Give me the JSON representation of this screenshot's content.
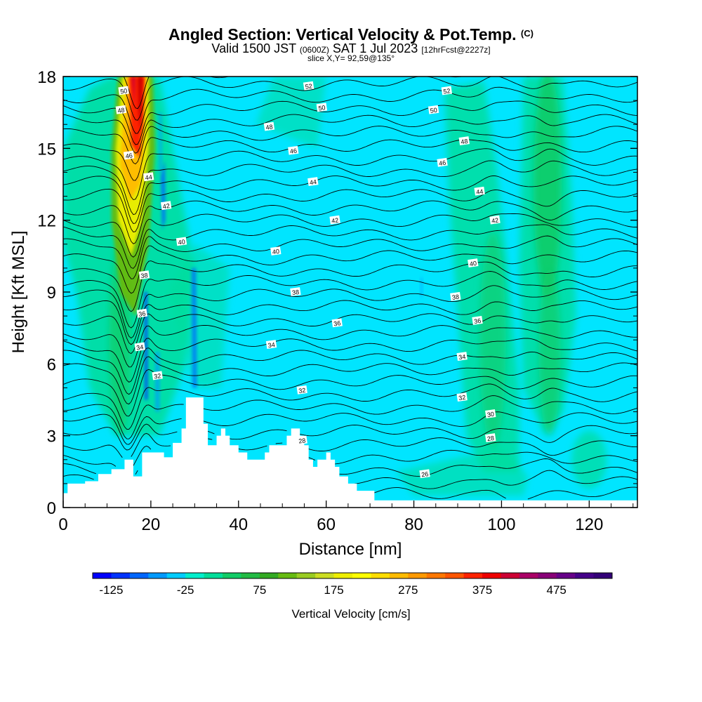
{
  "title": {
    "main": "Angled Section: Vertical Velocity & Pot.Temp.",
    "main_suffix": "(C)",
    "line2_a": "Valid 1500 JST",
    "line2_b": "(0600Z)",
    "line2_c": "SAT 1 Jul 2023",
    "line2_d": "[12hrFcst@2227z]",
    "line3": "slice X,Y= 92,59@135°"
  },
  "chart_data": {
    "type": "heatmap",
    "xlabel": "Distance [nm]",
    "ylabel": "Height [Kft MSL]",
    "xlim": [
      0,
      131
    ],
    "ylim": [
      0,
      18
    ],
    "xticks": [
      0,
      20,
      40,
      60,
      80,
      100,
      120
    ],
    "yticks": [
      0,
      3,
      6,
      9,
      12,
      15,
      18
    ],
    "colorbar": {
      "label": "Vertical Velocity [cm/s]",
      "tick_labels": [
        "-125",
        "-25",
        "75",
        "175",
        "275",
        "375",
        "475"
      ],
      "range": [
        -150,
        550
      ],
      "step": 25,
      "colors": [
        "#0000ff",
        "#0033ff",
        "#0066ff",
        "#0099ff",
        "#00ccff",
        "#00eecc",
        "#00dd99",
        "#11cc66",
        "#22bb44",
        "#33aa22",
        "#66bb11",
        "#99cc22",
        "#ccdd22",
        "#eeee00",
        "#ffff00",
        "#ffdd00",
        "#ffbb00",
        "#ff9900",
        "#ff7700",
        "#ff5500",
        "#ff2200",
        "#ee0000",
        "#cc0033",
        "#aa0066",
        "#880077",
        "#660088",
        "#440088",
        "#330077"
      ]
    },
    "colors": {
      "background": "#00e5ff",
      "weak_up": "#00dd99",
      "moderate_up": "#11cc66"
    },
    "terrain_profile": [
      [
        0,
        0.6
      ],
      [
        1,
        1.0
      ],
      [
        5,
        1.1
      ],
      [
        6,
        1.1
      ],
      [
        7,
        1.1
      ],
      [
        8,
        1.4
      ],
      [
        11,
        1.6
      ],
      [
        12,
        1.6
      ],
      [
        13,
        1.6
      ],
      [
        14,
        2.0
      ],
      [
        15,
        2.0
      ],
      [
        16,
        1.3
      ],
      [
        17,
        1.3
      ],
      [
        18,
        2.3
      ],
      [
        20,
        2.3
      ],
      [
        22,
        2.3
      ],
      [
        23,
        2.1
      ],
      [
        24,
        2.1
      ],
      [
        25,
        2.7
      ],
      [
        27,
        3.3
      ],
      [
        28,
        4.6
      ],
      [
        31,
        4.6
      ],
      [
        32,
        3.5
      ],
      [
        33,
        2.6
      ],
      [
        34,
        2.6
      ],
      [
        35,
        3.0
      ],
      [
        36,
        3.3
      ],
      [
        37,
        3.0
      ],
      [
        38,
        2.6
      ],
      [
        39,
        2.6
      ],
      [
        40,
        2.3
      ],
      [
        42,
        2.0
      ],
      [
        45,
        2.0
      ],
      [
        46,
        2.3
      ],
      [
        47,
        2.6
      ],
      [
        50,
        2.6
      ],
      [
        51,
        3.0
      ],
      [
        52,
        3.3
      ],
      [
        53,
        3.3
      ],
      [
        54,
        3.0
      ],
      [
        55,
        2.6
      ],
      [
        56,
        2.0
      ],
      [
        57,
        1.7
      ],
      [
        58,
        2.0
      ],
      [
        59,
        2.0
      ],
      [
        60,
        2.3
      ],
      [
        61,
        2.0
      ],
      [
        62,
        1.7
      ],
      [
        63,
        1.3
      ],
      [
        64,
        1.3
      ],
      [
        65,
        1.0
      ],
      [
        66,
        1.0
      ],
      [
        67,
        0.7
      ],
      [
        70,
        0.7
      ],
      [
        71,
        0.3
      ],
      [
        131,
        0.3
      ]
    ],
    "theta_labels": [
      {
        "t": "52",
        "x": 56.0,
        "y": 17.6
      },
      {
        "t": "52",
        "x": 87.5,
        "y": 17.4
      },
      {
        "t": "50",
        "x": 13.8,
        "y": 17.4
      },
      {
        "t": "50",
        "x": 59.0,
        "y": 16.7
      },
      {
        "t": "50",
        "x": 84.5,
        "y": 16.6
      },
      {
        "t": "48",
        "x": 13.2,
        "y": 16.6
      },
      {
        "t": "48",
        "x": 47.0,
        "y": 15.9
      },
      {
        "t": "48",
        "x": 91.5,
        "y": 15.3
      },
      {
        "t": "46",
        "x": 15.0,
        "y": 14.7
      },
      {
        "t": "46",
        "x": 52.5,
        "y": 14.9
      },
      {
        "t": "46",
        "x": 86.5,
        "y": 14.4
      },
      {
        "t": "44",
        "x": 19.5,
        "y": 13.8
      },
      {
        "t": "44",
        "x": 57.0,
        "y": 13.6
      },
      {
        "t": "44",
        "x": 95.0,
        "y": 13.2
      },
      {
        "t": "42",
        "x": 23.5,
        "y": 12.6
      },
      {
        "t": "42",
        "x": 62.0,
        "y": 12.0
      },
      {
        "t": "42",
        "x": 98.5,
        "y": 12.0
      },
      {
        "t": "40",
        "x": 27.0,
        "y": 11.1
      },
      {
        "t": "40",
        "x": 48.5,
        "y": 10.7
      },
      {
        "t": "40",
        "x": 93.5,
        "y": 10.2
      },
      {
        "t": "38",
        "x": 18.5,
        "y": 9.7
      },
      {
        "t": "38",
        "x": 53.0,
        "y": 9.0
      },
      {
        "t": "38",
        "x": 89.5,
        "y": 8.8
      },
      {
        "t": "36",
        "x": 18.0,
        "y": 8.1
      },
      {
        "t": "36",
        "x": 62.5,
        "y": 7.7
      },
      {
        "t": "36",
        "x": 94.5,
        "y": 7.8
      },
      {
        "t": "34",
        "x": 17.5,
        "y": 6.7
      },
      {
        "t": "34",
        "x": 47.5,
        "y": 6.8
      },
      {
        "t": "34",
        "x": 91.0,
        "y": 6.3
      },
      {
        "t": "32",
        "x": 21.5,
        "y": 5.5
      },
      {
        "t": "32",
        "x": 54.5,
        "y": 4.9
      },
      {
        "t": "32",
        "x": 91.0,
        "y": 4.6
      },
      {
        "t": "30",
        "x": 97.5,
        "y": 3.9
      },
      {
        "t": "28",
        "x": 54.5,
        "y": 2.8
      },
      {
        "t": "28",
        "x": 97.5,
        "y": 2.9
      },
      {
        "t": "26",
        "x": 82.5,
        "y": 1.4
      }
    ]
  }
}
